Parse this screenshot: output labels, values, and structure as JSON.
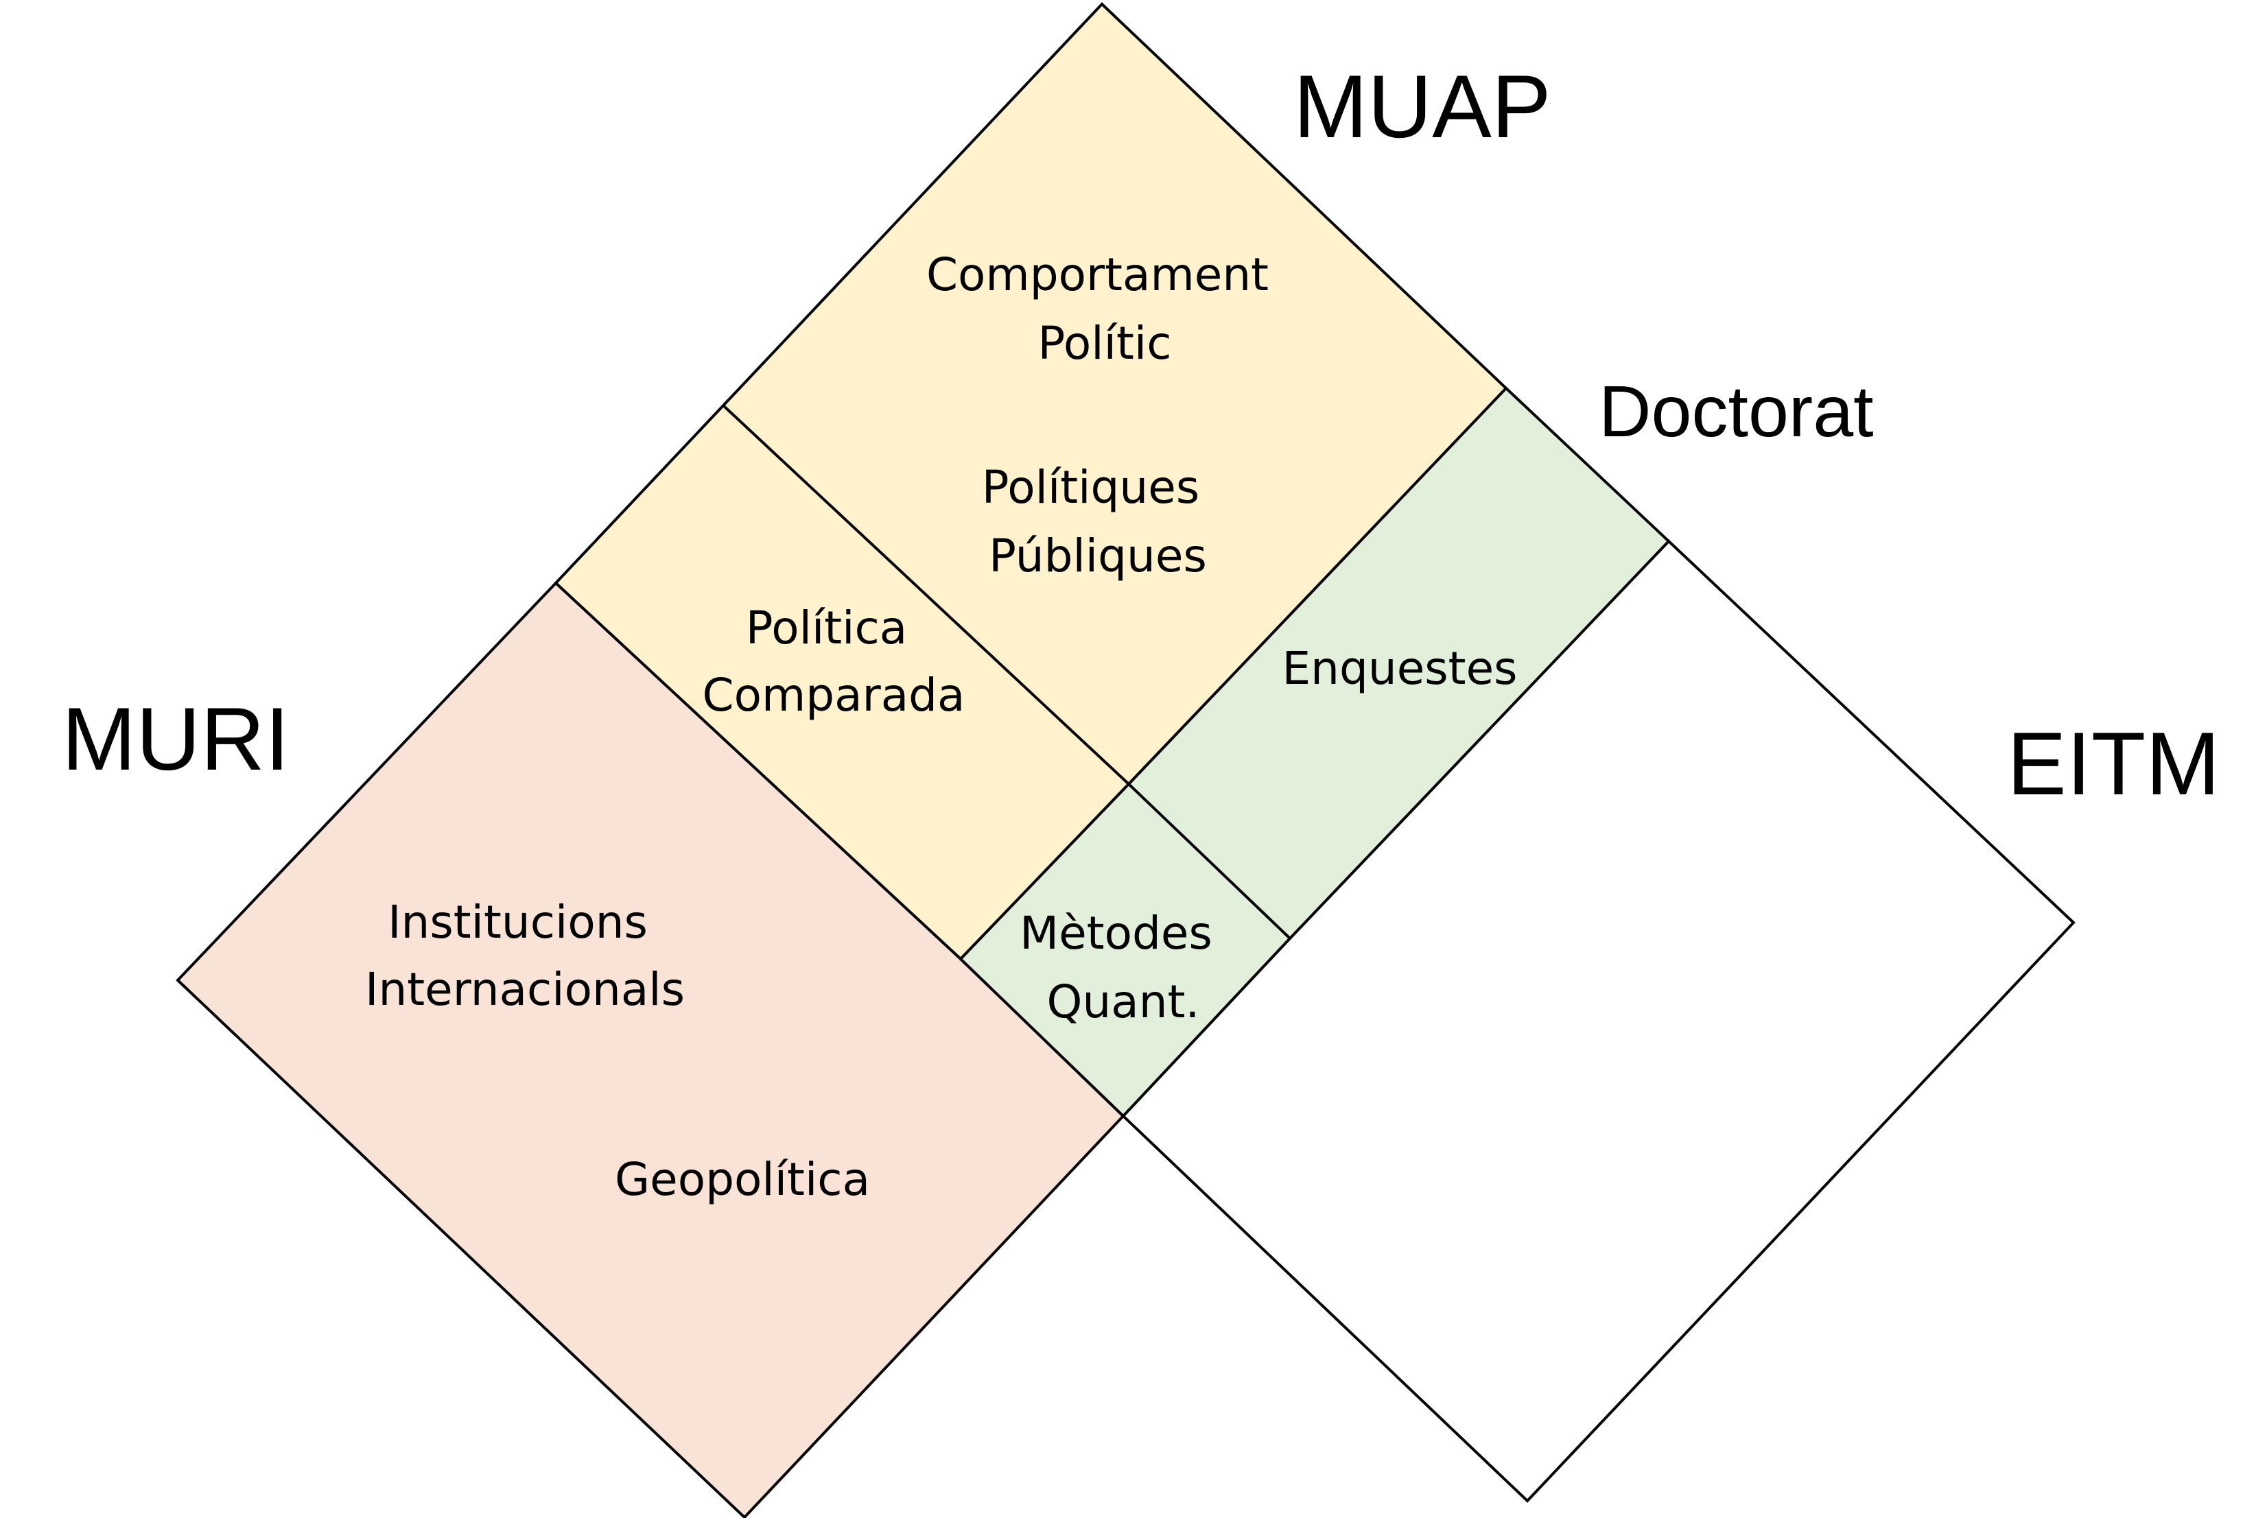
{
  "programs": {
    "muap": "MUAP",
    "doctorat": "Doctorat",
    "muri": "MURI",
    "eitm": "EITM"
  },
  "areas": {
    "comportament": [
      "Comportament",
      "Polític"
    ],
    "politiques": [
      "Polítiques",
      "Públiques"
    ],
    "comparada": [
      "Política",
      "Comparada"
    ],
    "enquestes": [
      "Enquestes"
    ],
    "institucions": [
      "Institucions",
      "Internacionals"
    ],
    "geopolitica": [
      "Geopolítica"
    ],
    "metodes": [
      "Mètodes",
      "Quant."
    ]
  },
  "colors": {
    "muap_fill": "#FFF2CC",
    "doctorat_fill": "#E2EFDA",
    "muri_fill": "#F9E3D6",
    "eitm_fill": "#FFFFFF",
    "stroke": "#000000"
  }
}
